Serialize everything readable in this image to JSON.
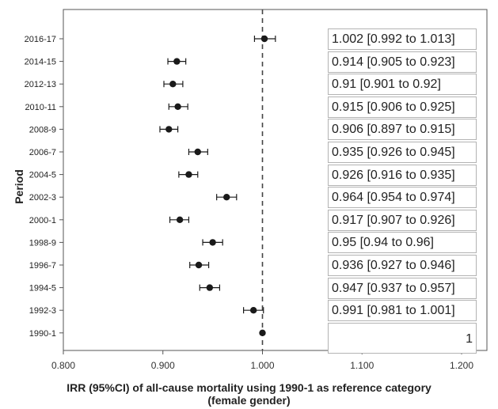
{
  "chart_data": {
    "type": "scatter",
    "title": "",
    "xlabel_lines": [
      "IRR (95%CI) of all-cause mortality using 1990-1 as reference category",
      "(female gender)"
    ],
    "ylabel": "Period",
    "xlim": [
      0.8,
      1.2
    ],
    "x_ticks": [
      "0.800",
      "0.900",
      "1.000",
      "1.100",
      "1.200"
    ],
    "reference_line": 1.0,
    "grid": false,
    "points": [
      {
        "period": "2016-17",
        "irr": 1.002,
        "lo": 0.992,
        "hi": 1.013,
        "label": "1.002 [0.992 to 1.013]"
      },
      {
        "period": "2014-15",
        "irr": 0.914,
        "lo": 0.905,
        "hi": 0.923,
        "label": "0.914 [0.905 to 0.923]"
      },
      {
        "period": "2012-13",
        "irr": 0.91,
        "lo": 0.901,
        "hi": 0.92,
        "label": "0.91 [0.901 to 0.92]"
      },
      {
        "period": "2010-11",
        "irr": 0.915,
        "lo": 0.906,
        "hi": 0.925,
        "label": "0.915 [0.906 to 0.925]"
      },
      {
        "period": "2008-9",
        "irr": 0.906,
        "lo": 0.897,
        "hi": 0.915,
        "label": "0.906 [0.897 to 0.915]"
      },
      {
        "period": "2006-7",
        "irr": 0.935,
        "lo": 0.926,
        "hi": 0.945,
        "label": "0.935 [0.926 to 0.945]"
      },
      {
        "period": "2004-5",
        "irr": 0.926,
        "lo": 0.916,
        "hi": 0.935,
        "label": "0.926 [0.916 to 0.935]"
      },
      {
        "period": "2002-3",
        "irr": 0.964,
        "lo": 0.954,
        "hi": 0.974,
        "label": "0.964 [0.954 to 0.974]"
      },
      {
        "period": "2000-1",
        "irr": 0.917,
        "lo": 0.907,
        "hi": 0.926,
        "label": "0.917 [0.907 to 0.926]"
      },
      {
        "period": "1998-9",
        "irr": 0.95,
        "lo": 0.94,
        "hi": 0.96,
        "label": "0.95 [0.94 to 0.96]"
      },
      {
        "period": "1996-7",
        "irr": 0.936,
        "lo": 0.927,
        "hi": 0.946,
        "label": "0.936 [0.927 to 0.946]"
      },
      {
        "period": "1994-5",
        "irr": 0.947,
        "lo": 0.937,
        "hi": 0.957,
        "label": "0.947 [0.937 to 0.957]"
      },
      {
        "period": "1992-3",
        "irr": 0.991,
        "lo": 0.981,
        "hi": 1.001,
        "label": "0.991 [0.981 to 1.001]"
      },
      {
        "period": "1990-1",
        "irr": 1.0,
        "lo": 1.0,
        "hi": 1.0,
        "label": "1"
      }
    ],
    "colors": {
      "marker": "#1a1a1a",
      "axis": "#555555",
      "refline": "#444444",
      "box_border": "#b3b3b3"
    }
  }
}
